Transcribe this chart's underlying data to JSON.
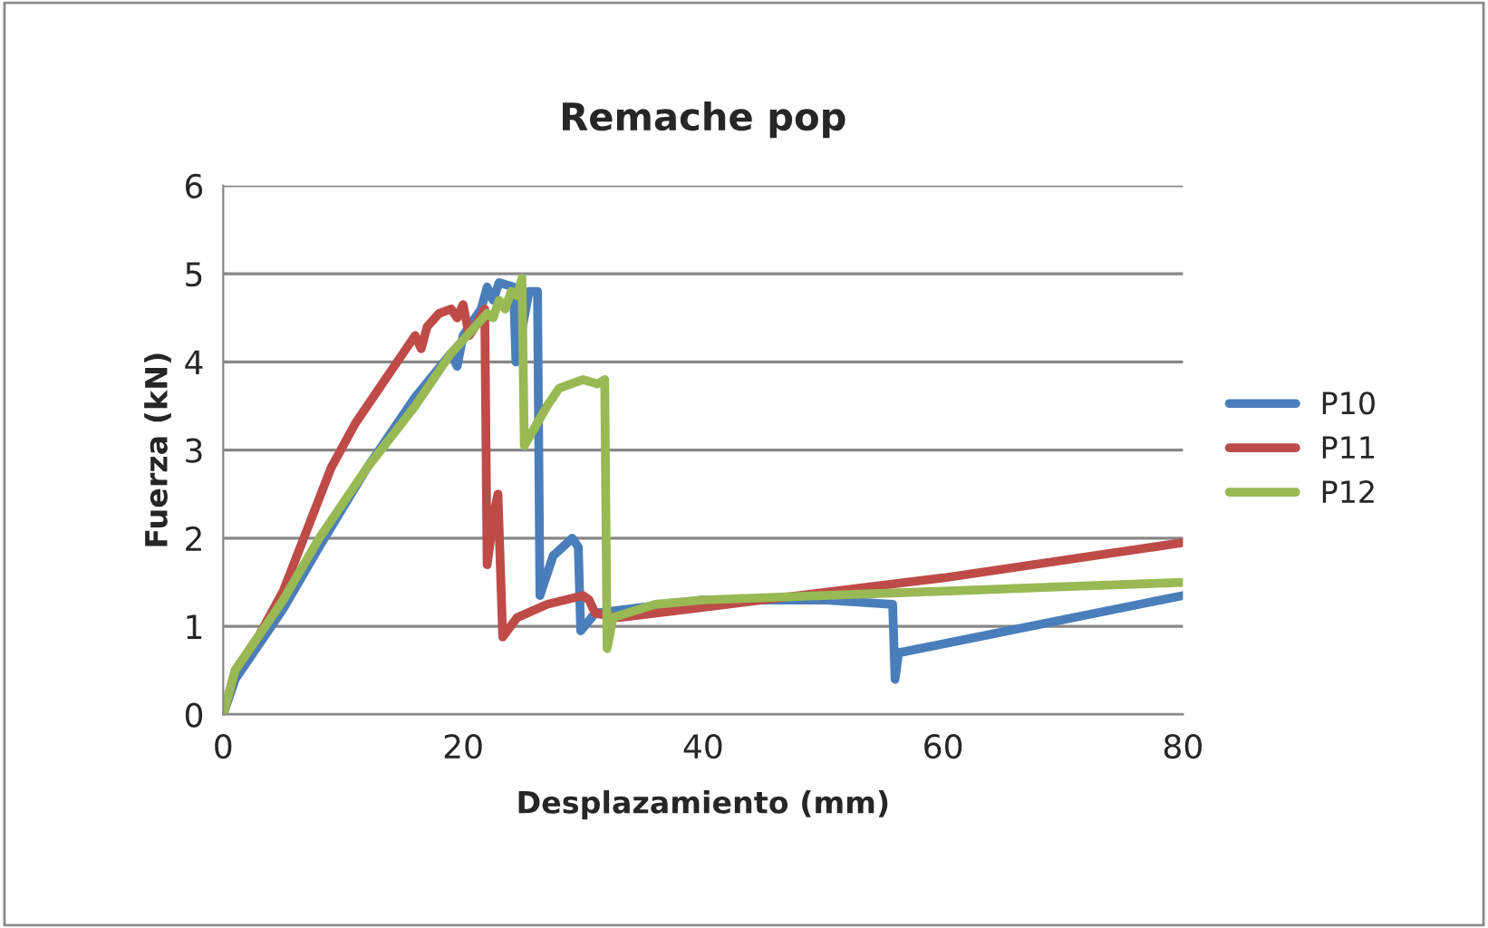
{
  "chart_data": {
    "type": "line",
    "title": "Remache pop",
    "xlabel": "Desplazamiento (mm)",
    "ylabel": "Fuerza (kN)",
    "xlim": [
      0,
      80
    ],
    "xticks": [
      0,
      20,
      40,
      60,
      80
    ],
    "ylim": [
      0,
      6
    ],
    "yticks": [
      0,
      1,
      2,
      3,
      4,
      5,
      6
    ],
    "grid": "y",
    "legend": "right",
    "marker": "none",
    "line_style": "solid",
    "series": [
      {
        "name": "P10",
        "color": "#4a7ebb",
        "x": [
          0,
          1,
          3,
          5,
          8,
          12,
          16,
          19,
          19.5,
          20,
          21.5,
          22,
          22.5,
          23,
          24.2,
          24.4,
          25.5,
          26.2,
          26.4,
          27.5,
          29.1,
          29.6,
          29.8,
          31,
          40,
          50,
          55.8,
          56,
          56.3,
          80
        ],
        "values": [
          0,
          0.4,
          0.8,
          1.2,
          1.9,
          2.8,
          3.6,
          4.1,
          3.95,
          4.3,
          4.6,
          4.85,
          4.7,
          4.9,
          4.85,
          4.0,
          4.8,
          4.8,
          1.35,
          1.8,
          2.0,
          1.9,
          0.95,
          1.15,
          1.3,
          1.3,
          1.25,
          0.4,
          0.7,
          1.35
        ]
      },
      {
        "name": "P11",
        "color": "#be4b48",
        "x": [
          0,
          1,
          3,
          5,
          7,
          9,
          11,
          13,
          15,
          16,
          16.5,
          17,
          18,
          19,
          19.5,
          20,
          20.5,
          21,
          21.8,
          22,
          22.6,
          22.9,
          23.3,
          24.5,
          27,
          30,
          30.5,
          31,
          33,
          45,
          60,
          70,
          80
        ],
        "values": [
          0,
          0.5,
          0.9,
          1.4,
          2.1,
          2.8,
          3.3,
          3.7,
          4.1,
          4.3,
          4.15,
          4.4,
          4.55,
          4.6,
          4.5,
          4.65,
          4.3,
          4.4,
          4.6,
          1.7,
          2.3,
          2.5,
          0.88,
          1.1,
          1.25,
          1.35,
          1.3,
          1.15,
          1.1,
          1.3,
          1.55,
          1.75,
          1.95
        ]
      },
      {
        "name": "P12",
        "color": "#98b954",
        "x": [
          0,
          1,
          3,
          5,
          8,
          12,
          16,
          19,
          21,
          22,
          22.5,
          23,
          23.5,
          24,
          24.5,
          24.9,
          25.1,
          27,
          28,
          29,
          30,
          31.2,
          31.8,
          32.0,
          32.5,
          36,
          40,
          50,
          60,
          70,
          80
        ],
        "values": [
          0,
          0.5,
          0.9,
          1.3,
          2.0,
          2.8,
          3.5,
          4.1,
          4.4,
          4.55,
          4.5,
          4.7,
          4.6,
          4.8,
          4.75,
          4.95,
          3.05,
          3.5,
          3.7,
          3.75,
          3.8,
          3.75,
          3.8,
          0.75,
          1.1,
          1.25,
          1.3,
          1.35,
          1.4,
          1.45,
          1.5
        ]
      }
    ]
  }
}
